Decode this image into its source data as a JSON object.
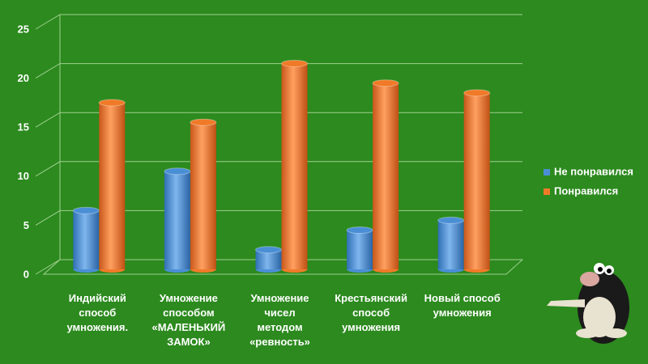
{
  "chart_data": {
    "type": "bar3d",
    "categories": [
      "Индийский\nспособ\nумножения.",
      "Умножение\nспособом\n«МАЛЕНЬКИЙ\nЗАМОК»",
      "Умножение\nчисел\nметодом\n«ревность»",
      "Крестьянский\nспособ\nумножения",
      "Новый способ\nумножения"
    ],
    "series": [
      {
        "name": "Не понравился",
        "color": "#4a8fd6",
        "values": [
          6,
          10,
          2,
          4,
          5
        ]
      },
      {
        "name": "Понравился",
        "color": "#f07a28",
        "values": [
          17,
          15,
          21,
          19,
          18
        ]
      }
    ],
    "ylim": [
      0,
      25
    ],
    "yticks": [
      0,
      5,
      10,
      15,
      20,
      25
    ],
    "grid": true,
    "legend": "right"
  }
}
